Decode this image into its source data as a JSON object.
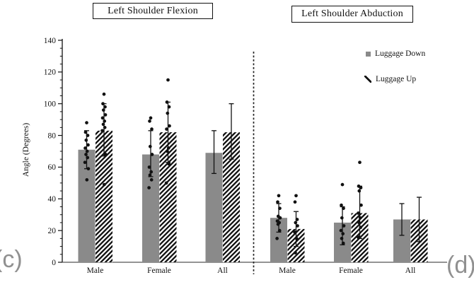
{
  "figure": {
    "ylabel": "Angle (Degrees)",
    "panel_labels": {
      "left": "(c)",
      "right": "(d)"
    },
    "legend": [
      {
        "label": "Luggage Down",
        "style": "solid-gray",
        "color": "#8a8a8a"
      },
      {
        "label": "Luggage Up",
        "style": "diagonal-hatch",
        "color": "#111111"
      }
    ],
    "colors": {
      "bar_gray": "#8a8a8a",
      "ink": "#111111",
      "axis_gray": "#555555",
      "sub_label_gray": "#909090"
    }
  },
  "chart_data": [
    {
      "type": "bar",
      "title": "Left Shoulder Flexion",
      "categories": [
        "Male",
        "Female",
        "All"
      ],
      "ylabel": "Angle (Degrees)",
      "ylim": [
        0,
        140
      ],
      "ytick_major": 20,
      "ytick_minor": 5,
      "grid": false,
      "series": [
        {
          "name": "Luggage Down",
          "values": [
            71,
            68,
            69
          ],
          "err_lo": [
            59,
            54,
            56
          ],
          "err_hi": [
            83,
            83,
            83
          ],
          "points": [
            [
              88,
              82,
              80,
              77,
              74,
              72,
              70,
              68,
              66,
              63,
              59,
              52
            ],
            [
              91,
              89,
              84,
              73,
              68,
              60,
              57,
              55,
              52,
              47
            ],
            []
          ]
        },
        {
          "name": "Luggage Up",
          "values": [
            83,
            82,
            82
          ],
          "err_lo": [
            67,
            63,
            65
          ],
          "err_hi": [
            100,
            101,
            100
          ],
          "points": [
            [
              106,
              100,
              98,
              96,
              93,
              91,
              89,
              87,
              85,
              83,
              68,
              49
            ],
            [
              115,
              101,
              98,
              94,
              86,
              84,
              72,
              70,
              62,
              50
            ],
            []
          ]
        }
      ]
    },
    {
      "type": "bar",
      "title": "Left Shoulder Abduction",
      "categories": [
        "Male",
        "Female",
        "All"
      ],
      "ylim": [
        0,
        140
      ],
      "ytick_major": 20,
      "ytick_minor": 5,
      "grid": false,
      "legend_position": "upper-right",
      "series": [
        {
          "name": "Luggage Down",
          "values": [
            28,
            25,
            27
          ],
          "err_lo": [
            19,
            11,
            17
          ],
          "err_hi": [
            37,
            35,
            37
          ],
          "points": [
            [
              42,
              38,
              34,
              29,
              28,
              26,
              25,
              24,
              20,
              15
            ],
            [
              49,
              36,
              34,
              28,
              23,
              20,
              18,
              15,
              12
            ],
            []
          ]
        },
        {
          "name": "Luggage Up",
          "values": [
            21,
            31,
            27
          ],
          "err_lo": [
            10,
            15,
            13
          ],
          "err_hi": [
            32,
            48,
            41
          ],
          "points": [
            [
              42,
              38,
              27,
              25,
              23,
              19,
              15,
              6
            ],
            [
              63,
              48,
              47,
              45,
              36,
              31,
              28,
              25,
              22,
              16
            ],
            []
          ]
        }
      ]
    }
  ]
}
